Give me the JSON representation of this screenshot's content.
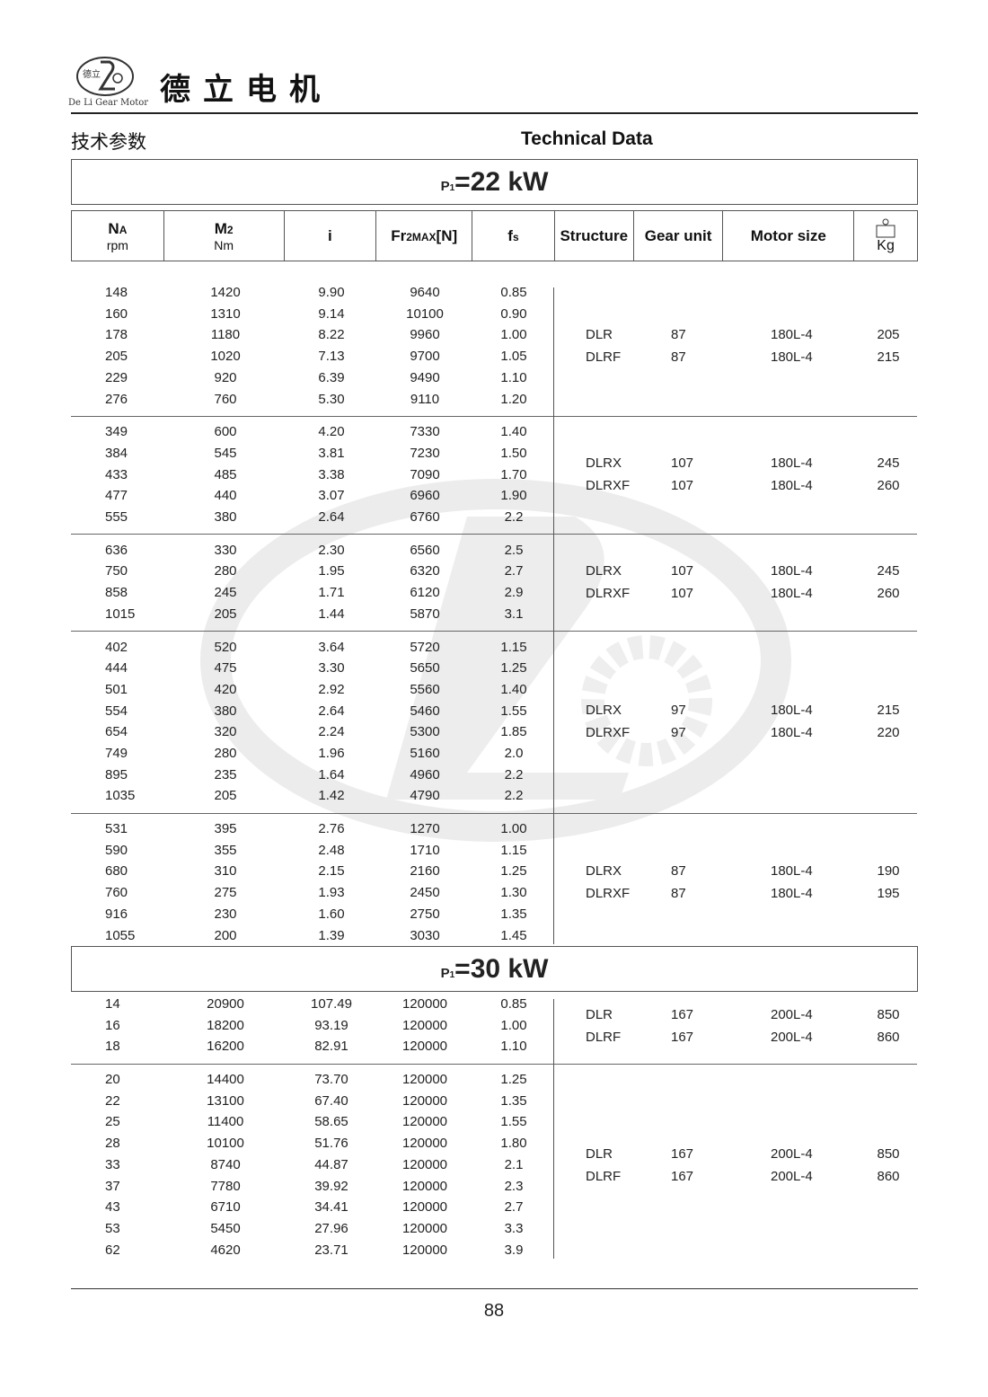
{
  "header": {
    "brand_name": "德立电机",
    "logo_text": "De Li Gear Motor",
    "logo_chars": "德立",
    "title_cn": "技术参数",
    "title_en": "Technical Data"
  },
  "columns": {
    "na": "N",
    "na_sub": "A",
    "na_unit": "rpm",
    "m2": "M",
    "m2_sub": "2",
    "m2_unit": "Nm",
    "i": "i",
    "fr": "Fr",
    "fr_sub": "2MAX",
    "fr_unit": "[N]",
    "fs": "f",
    "fs_sub": "s",
    "structure": "Structure",
    "gear_unit": "Gear unit",
    "motor_size": "Motor size",
    "weight_icon": "weight-icon",
    "weight_unit": "Kg"
  },
  "sections": [
    {
      "power_label": "P",
      "power_sub": "1",
      "power_eq": "=",
      "power_value": "22 kW",
      "groups": [
        {
          "rows": [
            [
              "148",
              "1420",
              "9.90",
              "9640",
              "0.85"
            ],
            [
              "160",
              "1310",
              "9.14",
              "10100",
              "0.90"
            ],
            [
              "178",
              "1180",
              "8.22",
              "9960",
              "1.00"
            ],
            [
              "205",
              "1020",
              "7.13",
              "9700",
              "1.05"
            ],
            [
              "229",
              "920",
              "6.39",
              "9490",
              "1.10"
            ],
            [
              "276",
              "760",
              "5.30",
              "9110",
              "1.20"
            ]
          ],
          "units": [
            [
              "DLR",
              "87",
              "180L-4",
              "205"
            ],
            [
              "DLRF",
              "87",
              "180L-4",
              "215"
            ]
          ]
        },
        {
          "rows": [
            [
              "349",
              "600",
              "4.20",
              "7330",
              "1.40"
            ],
            [
              "384",
              "545",
              "3.81",
              "7230",
              "1.50"
            ],
            [
              "433",
              "485",
              "3.38",
              "7090",
              "1.70"
            ],
            [
              "477",
              "440",
              "3.07",
              "6960",
              "1.90"
            ],
            [
              "555",
              "380",
              "2.64",
              "6760",
              "2.2"
            ]
          ],
          "units": [
            [
              "DLRX",
              "107",
              "180L-4",
              "245"
            ],
            [
              "DLRXF",
              "107",
              "180L-4",
              "260"
            ]
          ]
        },
        {
          "rows": [
            [
              "636",
              "330",
              "2.30",
              "6560",
              "2.5"
            ],
            [
              "750",
              "280",
              "1.95",
              "6320",
              "2.7"
            ],
            [
              "858",
              "245",
              "1.71",
              "6120",
              "2.9"
            ],
            [
              "1015",
              "205",
              "1.44",
              "5870",
              "3.1"
            ]
          ],
          "units": [
            [
              "DLRX",
              "107",
              "180L-4",
              "245"
            ],
            [
              "DLRXF",
              "107",
              "180L-4",
              "260"
            ]
          ]
        },
        {
          "rows": [
            [
              "402",
              "520",
              "3.64",
              "5720",
              "1.15"
            ],
            [
              "444",
              "475",
              "3.30",
              "5650",
              "1.25"
            ],
            [
              "501",
              "420",
              "2.92",
              "5560",
              "1.40"
            ],
            [
              "554",
              "380",
              "2.64",
              "5460",
              "1.55"
            ],
            [
              "654",
              "320",
              "2.24",
              "5300",
              "1.85"
            ],
            [
              "749",
              "280",
              "1.96",
              "5160",
              "2.0"
            ],
            [
              "895",
              "235",
              "1.64",
              "4960",
              "2.2"
            ],
            [
              "1035",
              "205",
              "1.42",
              "4790",
              "2.2"
            ]
          ],
          "units": [
            [
              "DLRX",
              "97",
              "180L-4",
              "215"
            ],
            [
              "DLRXF",
              "97",
              "180L-4",
              "220"
            ]
          ]
        },
        {
          "rows": [
            [
              "531",
              "395",
              "2.76",
              "1270",
              "1.00"
            ],
            [
              "590",
              "355",
              "2.48",
              "1710",
              "1.15"
            ],
            [
              "680",
              "310",
              "2.15",
              "2160",
              "1.25"
            ],
            [
              "760",
              "275",
              "1.93",
              "2450",
              "1.30"
            ],
            [
              "916",
              "230",
              "1.60",
              "2750",
              "1.35"
            ],
            [
              "1055",
              "200",
              "1.39",
              "3030",
              "1.45"
            ]
          ],
          "units": [
            [
              "DLRX",
              "87",
              "180L-4",
              "190"
            ],
            [
              "DLRXF",
              "87",
              "180L-4",
              "195"
            ]
          ]
        }
      ]
    },
    {
      "power_label": "P",
      "power_sub": "1",
      "power_eq": "=",
      "power_value": "30 kW",
      "groups": [
        {
          "rows": [
            [
              "14",
              "20900",
              "107.49",
              "120000",
              "0.85"
            ],
            [
              "16",
              "18200",
              "93.19",
              "120000",
              "1.00"
            ],
            [
              "18",
              "16200",
              "82.91",
              "120000",
              "1.10"
            ]
          ],
          "units": [
            [
              "DLR",
              "167",
              "200L-4",
              "850"
            ],
            [
              "DLRF",
              "167",
              "200L-4",
              "860"
            ]
          ]
        },
        {
          "rows": [
            [
              "20",
              "14400",
              "73.70",
              "120000",
              "1.25"
            ],
            [
              "22",
              "13100",
              "67.40",
              "120000",
              "1.35"
            ],
            [
              "25",
              "11400",
              "58.65",
              "120000",
              "1.55"
            ],
            [
              "28",
              "10100",
              "51.76",
              "120000",
              "1.80"
            ],
            [
              "33",
              "8740",
              "44.87",
              "120000",
              "2.1"
            ],
            [
              "37",
              "7780",
              "39.92",
              "120000",
              "2.3"
            ],
            [
              "43",
              "6710",
              "34.41",
              "120000",
              "2.7"
            ],
            [
              "53",
              "5450",
              "27.96",
              "120000",
              "3.3"
            ],
            [
              "62",
              "4620",
              "23.71",
              "120000",
              "3.9"
            ]
          ],
          "units": [
            [
              "DLR",
              "167",
              "200L-4",
              "850"
            ],
            [
              "DLRF",
              "167",
              "200L-4",
              "860"
            ]
          ]
        }
      ]
    }
  ],
  "watermark": {
    "text": "De Li Gear Motor",
    "chars": "德立"
  },
  "footer": {
    "page_number": "88"
  }
}
